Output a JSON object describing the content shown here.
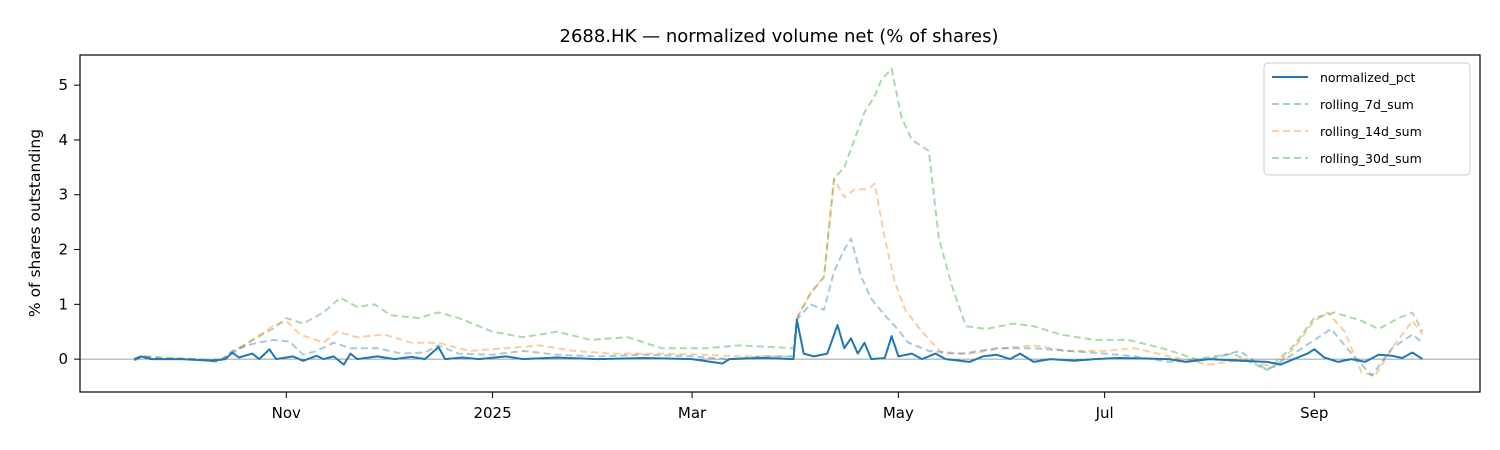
{
  "chart_data": {
    "type": "line",
    "title": "2688.HK — normalized volume net (% of shares)",
    "xlabel": "",
    "ylabel": "% of shares outstanding",
    "x_start": "2024-09-17",
    "x_end": "2025-10-03",
    "xlim": [
      "2024-09-01",
      "2025-10-20"
    ],
    "ylim": [
      -0.6,
      5.55
    ],
    "yticks": [
      0,
      1,
      2,
      3,
      4,
      5
    ],
    "xticks": [
      {
        "date": "2024-11-01",
        "label": "Nov"
      },
      {
        "date": "2025-01-01",
        "label": "2025"
      },
      {
        "date": "2025-03-01",
        "label": "Mar"
      },
      {
        "date": "2025-05-01",
        "label": "May"
      },
      {
        "date": "2025-07-01",
        "label": "Jul"
      },
      {
        "date": "2025-09-01",
        "label": "Sep"
      }
    ],
    "zero_line": true,
    "grid": false,
    "legend_position": "top-right",
    "series": [
      {
        "name": "normalized_pct",
        "color": "#1f77b4",
        "style": "solid",
        "opacity": 1.0,
        "points": [
          [
            "2024-09-17",
            0.0
          ],
          [
            "2024-09-19",
            0.05
          ],
          [
            "2024-09-22",
            0.0
          ],
          [
            "2024-10-01",
            0.0
          ],
          [
            "2024-10-10",
            -0.03
          ],
          [
            "2024-10-14",
            0.0
          ],
          [
            "2024-10-16",
            0.12
          ],
          [
            "2024-10-18",
            0.03
          ],
          [
            "2024-10-22",
            0.1
          ],
          [
            "2024-10-24",
            0.0
          ],
          [
            "2024-10-27",
            0.18
          ],
          [
            "2024-10-29",
            0.0
          ],
          [
            "2024-11-03",
            0.05
          ],
          [
            "2024-11-06",
            -0.03
          ],
          [
            "2024-11-10",
            0.06
          ],
          [
            "2024-11-12",
            0.0
          ],
          [
            "2024-11-15",
            0.05
          ],
          [
            "2024-11-18",
            -0.1
          ],
          [
            "2024-11-20",
            0.1
          ],
          [
            "2024-11-22",
            0.0
          ],
          [
            "2024-11-28",
            0.05
          ],
          [
            "2024-12-03",
            0.0
          ],
          [
            "2024-12-08",
            0.04
          ],
          [
            "2024-12-12",
            0.0
          ],
          [
            "2024-12-16",
            0.22
          ],
          [
            "2024-12-18",
            0.0
          ],
          [
            "2024-12-23",
            0.03
          ],
          [
            "2024-12-28",
            0.0
          ],
          [
            "2025-01-05",
            0.05
          ],
          [
            "2025-01-10",
            0.0
          ],
          [
            "2025-01-20",
            0.03
          ],
          [
            "2025-02-01",
            0.0
          ],
          [
            "2025-02-15",
            0.02
          ],
          [
            "2025-03-01",
            0.0
          ],
          [
            "2025-03-10",
            -0.08
          ],
          [
            "2025-03-12",
            0.0
          ],
          [
            "2025-03-22",
            0.02
          ],
          [
            "2025-03-31",
            0.0
          ],
          [
            "2025-04-01",
            0.72
          ],
          [
            "2025-04-03",
            0.1
          ],
          [
            "2025-04-06",
            0.05
          ],
          [
            "2025-04-10",
            0.1
          ],
          [
            "2025-04-13",
            0.62
          ],
          [
            "2025-04-15",
            0.2
          ],
          [
            "2025-04-17",
            0.38
          ],
          [
            "2025-04-19",
            0.1
          ],
          [
            "2025-04-21",
            0.3
          ],
          [
            "2025-04-23",
            0.0
          ],
          [
            "2025-04-27",
            0.02
          ],
          [
            "2025-04-29",
            0.42
          ],
          [
            "2025-05-01",
            0.05
          ],
          [
            "2025-05-05",
            0.1
          ],
          [
            "2025-05-08",
            0.0
          ],
          [
            "2025-05-12",
            0.1
          ],
          [
            "2025-05-15",
            0.0
          ],
          [
            "2025-05-22",
            -0.05
          ],
          [
            "2025-05-26",
            0.05
          ],
          [
            "2025-05-30",
            0.08
          ],
          [
            "2025-06-03",
            0.0
          ],
          [
            "2025-06-06",
            0.1
          ],
          [
            "2025-06-10",
            -0.05
          ],
          [
            "2025-06-15",
            0.0
          ],
          [
            "2025-06-22",
            -0.03
          ],
          [
            "2025-06-28",
            0.0
          ],
          [
            "2025-07-05",
            0.02
          ],
          [
            "2025-07-20",
            0.0
          ],
          [
            "2025-07-25",
            -0.05
          ],
          [
            "2025-08-01",
            0.0
          ],
          [
            "2025-08-10",
            -0.03
          ],
          [
            "2025-08-18",
            -0.05
          ],
          [
            "2025-08-22",
            -0.1
          ],
          [
            "2025-08-26",
            0.0
          ],
          [
            "2025-08-30",
            0.1
          ],
          [
            "2025-09-01",
            0.18
          ],
          [
            "2025-09-04",
            0.03
          ],
          [
            "2025-09-08",
            -0.05
          ],
          [
            "2025-09-12",
            0.0
          ],
          [
            "2025-09-16",
            -0.05
          ],
          [
            "2025-09-20",
            0.08
          ],
          [
            "2025-09-24",
            0.06
          ],
          [
            "2025-09-27",
            0.02
          ],
          [
            "2025-09-30",
            0.12
          ],
          [
            "2025-10-03",
            0.0
          ]
        ]
      },
      {
        "name": "rolling_7d_sum",
        "color": "#1f77b4",
        "style": "dashed",
        "opacity": 0.4,
        "points": [
          [
            "2024-09-17",
            -0.02
          ],
          [
            "2024-09-20",
            0.05
          ],
          [
            "2024-09-25",
            0.0
          ],
          [
            "2024-10-05",
            0.0
          ],
          [
            "2024-10-12",
            -0.05
          ],
          [
            "2024-10-16",
            0.15
          ],
          [
            "2024-10-22",
            0.28
          ],
          [
            "2024-10-28",
            0.35
          ],
          [
            "2024-11-02",
            0.32
          ],
          [
            "2024-11-06",
            0.08
          ],
          [
            "2024-11-10",
            0.15
          ],
          [
            "2024-11-15",
            0.3
          ],
          [
            "2024-11-20",
            0.2
          ],
          [
            "2024-11-28",
            0.2
          ],
          [
            "2024-12-05",
            0.1
          ],
          [
            "2024-12-12",
            0.12
          ],
          [
            "2024-12-16",
            0.25
          ],
          [
            "2024-12-22",
            0.1
          ],
          [
            "2025-01-01",
            0.08
          ],
          [
            "2025-01-10",
            0.15
          ],
          [
            "2025-01-20",
            0.08
          ],
          [
            "2025-02-01",
            0.05
          ],
          [
            "2025-02-15",
            0.08
          ],
          [
            "2025-03-01",
            0.05
          ],
          [
            "2025-03-12",
            0.0
          ],
          [
            "2025-03-22",
            0.05
          ],
          [
            "2025-03-31",
            0.05
          ],
          [
            "2025-04-01",
            0.72
          ],
          [
            "2025-04-05",
            1.0
          ],
          [
            "2025-04-09",
            0.9
          ],
          [
            "2025-04-12",
            1.6
          ],
          [
            "2025-04-15",
            2.0
          ],
          [
            "2025-04-17",
            2.2
          ],
          [
            "2025-04-20",
            1.5
          ],
          [
            "2025-04-23",
            1.1
          ],
          [
            "2025-04-27",
            0.8
          ],
          [
            "2025-04-30",
            0.6
          ],
          [
            "2025-05-04",
            0.3
          ],
          [
            "2025-05-10",
            0.15
          ],
          [
            "2025-05-20",
            0.1
          ],
          [
            "2025-05-30",
            0.2
          ],
          [
            "2025-06-10",
            0.2
          ],
          [
            "2025-06-20",
            0.15
          ],
          [
            "2025-07-01",
            0.1
          ],
          [
            "2025-07-10",
            0.05
          ],
          [
            "2025-07-20",
            -0.05
          ],
          [
            "2025-08-01",
            0.0
          ],
          [
            "2025-08-10",
            0.15
          ],
          [
            "2025-08-18",
            -0.2
          ],
          [
            "2025-08-26",
            0.1
          ],
          [
            "2025-09-01",
            0.35
          ],
          [
            "2025-09-06",
            0.55
          ],
          [
            "2025-09-12",
            0.1
          ],
          [
            "2025-09-18",
            -0.3
          ],
          [
            "2025-09-24",
            0.2
          ],
          [
            "2025-09-30",
            0.45
          ],
          [
            "2025-10-03",
            0.3
          ]
        ]
      },
      {
        "name": "rolling_14d_sum",
        "color": "#ff7f0e",
        "style": "dashed",
        "opacity": 0.4,
        "points": [
          [
            "2024-09-17",
            -0.02
          ],
          [
            "2024-09-20",
            0.05
          ],
          [
            "2024-09-25",
            0.02
          ],
          [
            "2024-10-05",
            0.0
          ],
          [
            "2024-10-12",
            -0.03
          ],
          [
            "2024-10-16",
            0.1
          ],
          [
            "2024-10-22",
            0.35
          ],
          [
            "2024-10-28",
            0.6
          ],
          [
            "2024-11-01",
            0.7
          ],
          [
            "2024-11-05",
            0.45
          ],
          [
            "2024-11-12",
            0.3
          ],
          [
            "2024-11-16",
            0.5
          ],
          [
            "2024-11-22",
            0.4
          ],
          [
            "2024-11-30",
            0.45
          ],
          [
            "2024-12-08",
            0.3
          ],
          [
            "2024-12-16",
            0.3
          ],
          [
            "2024-12-25",
            0.15
          ],
          [
            "2025-01-05",
            0.2
          ],
          [
            "2025-01-15",
            0.25
          ],
          [
            "2025-01-25",
            0.15
          ],
          [
            "2025-02-05",
            0.1
          ],
          [
            "2025-02-20",
            0.1
          ],
          [
            "2025-03-05",
            0.08
          ],
          [
            "2025-03-15",
            0.05
          ],
          [
            "2025-03-31",
            0.05
          ],
          [
            "2025-04-01",
            0.75
          ],
          [
            "2025-04-05",
            1.2
          ],
          [
            "2025-04-09",
            1.5
          ],
          [
            "2025-04-12",
            3.3
          ],
          [
            "2025-04-15",
            2.95
          ],
          [
            "2025-04-18",
            3.1
          ],
          [
            "2025-04-22",
            3.1
          ],
          [
            "2025-04-24",
            3.2
          ],
          [
            "2025-04-27",
            2.2
          ],
          [
            "2025-04-30",
            1.4
          ],
          [
            "2025-05-03",
            0.9
          ],
          [
            "2025-05-08",
            0.5
          ],
          [
            "2025-05-14",
            0.1
          ],
          [
            "2025-05-22",
            0.1
          ],
          [
            "2025-06-01",
            0.2
          ],
          [
            "2025-06-10",
            0.25
          ],
          [
            "2025-06-20",
            0.15
          ],
          [
            "2025-07-01",
            0.15
          ],
          [
            "2025-07-10",
            0.2
          ],
          [
            "2025-07-20",
            0.05
          ],
          [
            "2025-08-01",
            -0.1
          ],
          [
            "2025-08-12",
            0.0
          ],
          [
            "2025-08-20",
            -0.15
          ],
          [
            "2025-08-26",
            0.2
          ],
          [
            "2025-09-01",
            0.7
          ],
          [
            "2025-09-05",
            0.85
          ],
          [
            "2025-09-10",
            0.5
          ],
          [
            "2025-09-15",
            -0.25
          ],
          [
            "2025-09-19",
            -0.3
          ],
          [
            "2025-09-24",
            0.2
          ],
          [
            "2025-09-30",
            0.7
          ],
          [
            "2025-10-03",
            0.45
          ]
        ]
      },
      {
        "name": "rolling_30d_sum",
        "color": "#2ca02c",
        "style": "dashed",
        "opacity": 0.4,
        "points": [
          [
            "2024-09-17",
            -0.02
          ],
          [
            "2024-09-20",
            0.05
          ],
          [
            "2024-09-25",
            0.03
          ],
          [
            "2024-10-05",
            0.0
          ],
          [
            "2024-10-12",
            -0.05
          ],
          [
            "2024-10-16",
            0.12
          ],
          [
            "2024-10-22",
            0.35
          ],
          [
            "2024-10-28",
            0.55
          ],
          [
            "2024-11-01",
            0.75
          ],
          [
            "2024-11-06",
            0.65
          ],
          [
            "2024-11-12",
            0.85
          ],
          [
            "2024-11-17",
            1.12
          ],
          [
            "2024-11-22",
            0.95
          ],
          [
            "2024-11-27",
            1.0
          ],
          [
            "2024-12-02",
            0.8
          ],
          [
            "2024-12-10",
            0.75
          ],
          [
            "2024-12-16",
            0.85
          ],
          [
            "2024-12-22",
            0.75
          ],
          [
            "2025-01-01",
            0.5
          ],
          [
            "2025-01-10",
            0.4
          ],
          [
            "2025-01-20",
            0.5
          ],
          [
            "2025-01-30",
            0.35
          ],
          [
            "2025-02-10",
            0.4
          ],
          [
            "2025-02-20",
            0.2
          ],
          [
            "2025-03-05",
            0.2
          ],
          [
            "2025-03-15",
            0.25
          ],
          [
            "2025-03-31",
            0.2
          ],
          [
            "2025-04-01",
            0.75
          ],
          [
            "2025-04-05",
            1.2
          ],
          [
            "2025-04-09",
            1.5
          ],
          [
            "2025-04-12",
            3.3
          ],
          [
            "2025-04-15",
            3.5
          ],
          [
            "2025-04-18",
            4.0
          ],
          [
            "2025-04-21",
            4.5
          ],
          [
            "2025-04-24",
            4.8
          ],
          [
            "2025-04-26",
            5.1
          ],
          [
            "2025-04-29",
            5.3
          ],
          [
            "2025-05-02",
            4.4
          ],
          [
            "2025-05-05",
            4.0
          ],
          [
            "2025-05-10",
            3.8
          ],
          [
            "2025-05-13",
            2.2
          ],
          [
            "2025-05-17",
            1.3
          ],
          [
            "2025-05-21",
            0.6
          ],
          [
            "2025-05-27",
            0.55
          ],
          [
            "2025-06-04",
            0.65
          ],
          [
            "2025-06-10",
            0.6
          ],
          [
            "2025-06-18",
            0.45
          ],
          [
            "2025-06-28",
            0.35
          ],
          [
            "2025-07-08",
            0.35
          ],
          [
            "2025-07-18",
            0.2
          ],
          [
            "2025-07-28",
            0.0
          ],
          [
            "2025-08-08",
            0.1
          ],
          [
            "2025-08-18",
            -0.2
          ],
          [
            "2025-08-26",
            0.25
          ],
          [
            "2025-09-01",
            0.75
          ],
          [
            "2025-09-07",
            0.85
          ],
          [
            "2025-09-15",
            0.7
          ],
          [
            "2025-09-20",
            0.55
          ],
          [
            "2025-09-26",
            0.75
          ],
          [
            "2025-09-30",
            0.85
          ],
          [
            "2025-10-03",
            0.5
          ]
        ]
      }
    ]
  }
}
